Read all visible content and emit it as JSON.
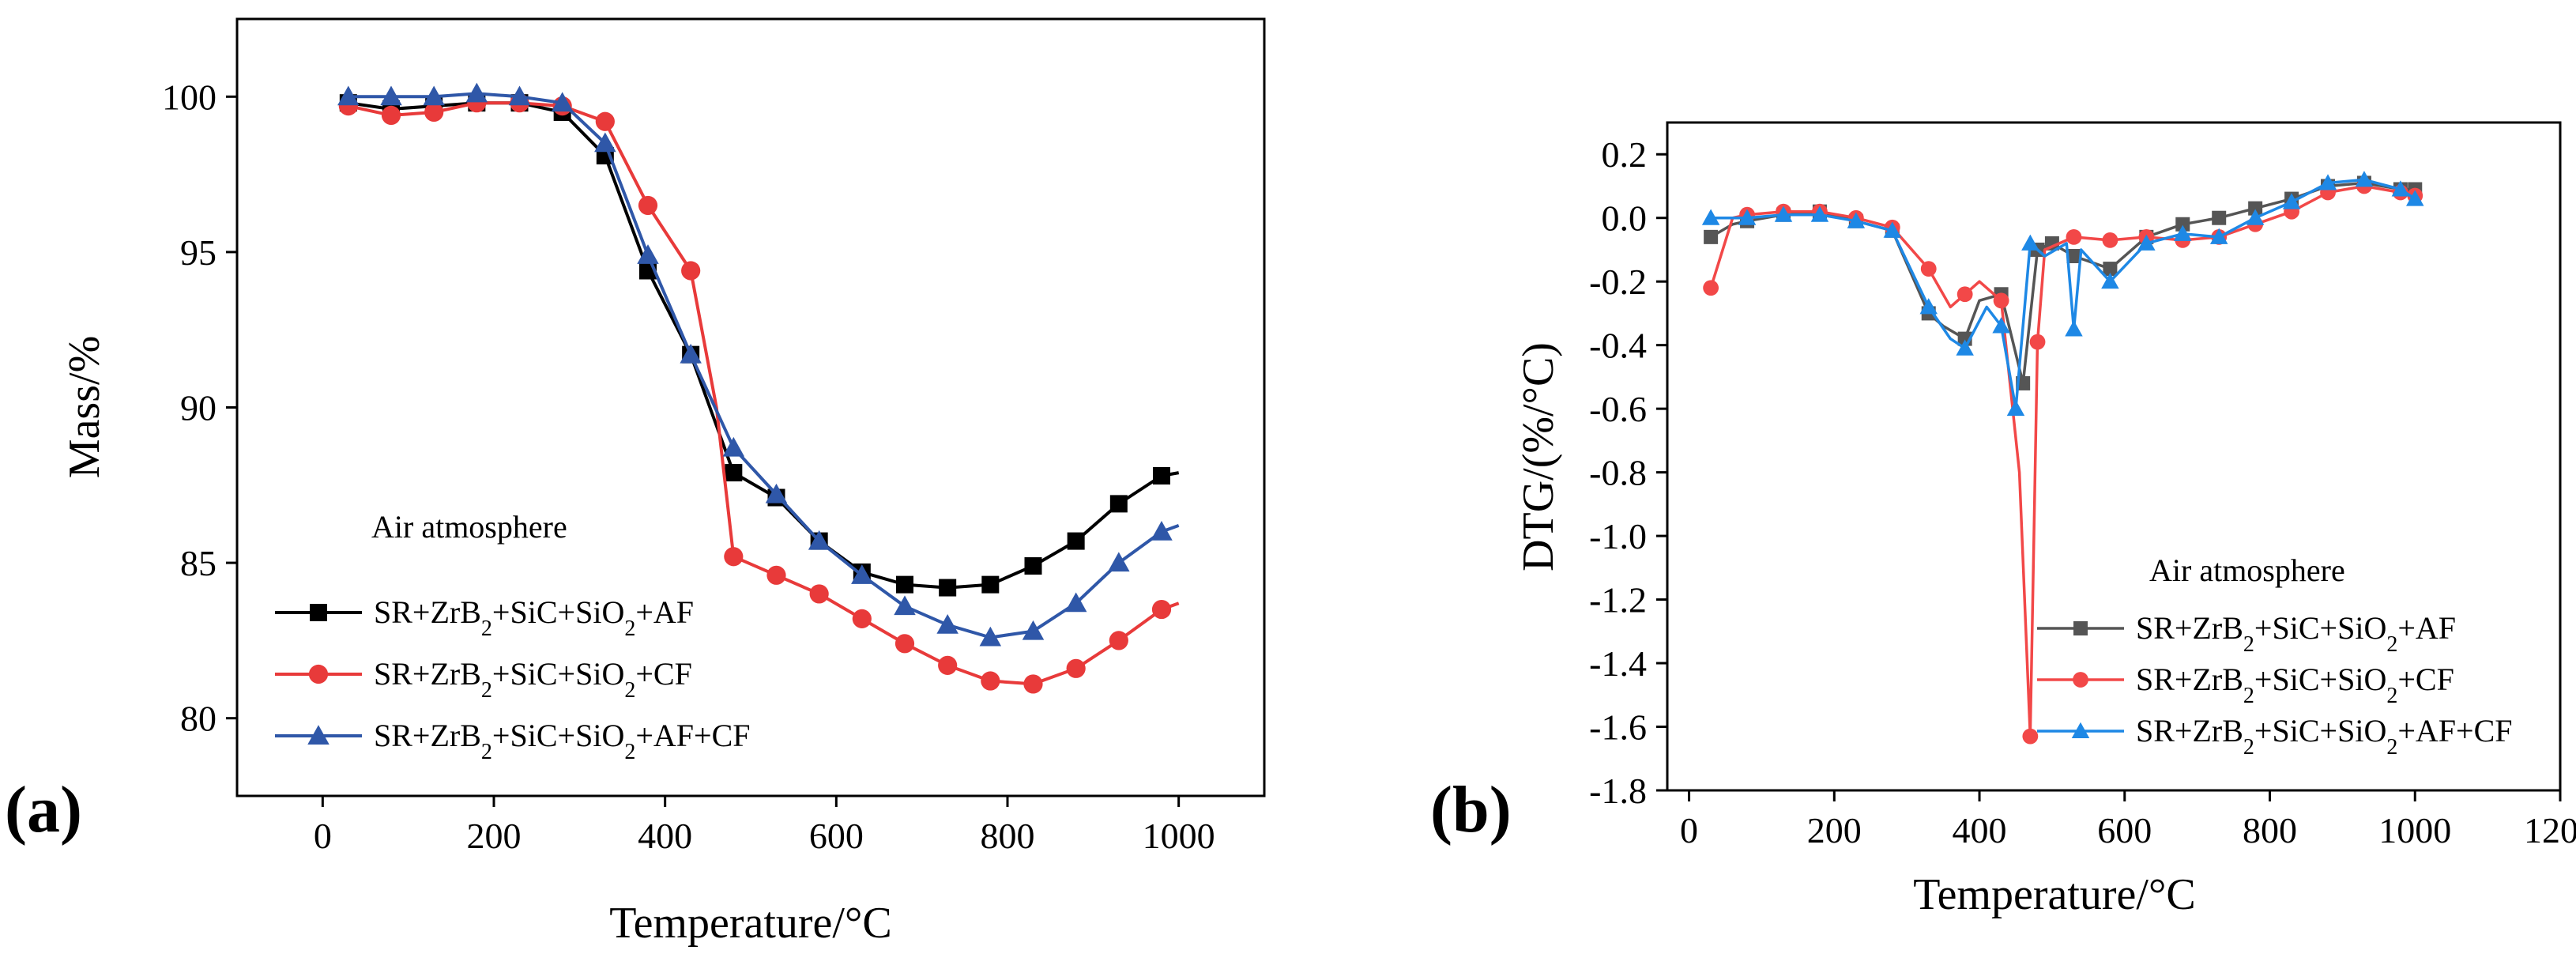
{
  "chart_data": [
    {
      "type": "line",
      "panel_label": "(a)",
      "xlabel": "Temperature/°C",
      "ylabel": "Mass/%",
      "xlim": [
        -100,
        1100
      ],
      "ylim": [
        77.5,
        102.5
      ],
      "xticks": [
        0,
        200,
        400,
        600,
        800,
        1000
      ],
      "yticks": [
        80,
        85,
        90,
        95,
        100
      ],
      "annotation": "Air atmosphere",
      "legend_position": "lower-left",
      "series": [
        {
          "name": "SR+ZrB2+SiC+SiO2+AF",
          "color": "#000000",
          "marker": "square",
          "x": [
            30,
            80,
            130,
            180,
            230,
            280,
            330,
            380,
            430,
            480,
            530,
            580,
            630,
            680,
            730,
            780,
            830,
            880,
            930,
            980,
            1000
          ],
          "y": [
            99.8,
            99.6,
            99.7,
            99.8,
            99.8,
            99.5,
            98.1,
            94.4,
            91.7,
            87.9,
            87.1,
            85.7,
            84.7,
            84.3,
            84.2,
            84.3,
            84.9,
            85.7,
            86.9,
            87.8,
            87.9
          ]
        },
        {
          "name": "SR+ZrB2+SiC+SiO2+CF",
          "color": "#e83a3a",
          "marker": "circle",
          "x": [
            30,
            80,
            130,
            180,
            230,
            280,
            330,
            380,
            430,
            460,
            480,
            530,
            580,
            630,
            680,
            730,
            780,
            830,
            880,
            930,
            980,
            1000
          ],
          "y": [
            99.7,
            99.4,
            99.5,
            99.8,
            99.8,
            99.7,
            99.2,
            96.5,
            94.4,
            90.0,
            85.2,
            84.6,
            84.0,
            83.2,
            82.4,
            81.7,
            81.2,
            81.1,
            81.6,
            82.5,
            83.5,
            83.7
          ]
        },
        {
          "name": "SR+ZrB2+SiC+SiO2+AF+CF",
          "color": "#2f57a8",
          "marker": "triangle",
          "x": [
            30,
            80,
            130,
            180,
            230,
            280,
            330,
            380,
            430,
            480,
            530,
            580,
            630,
            680,
            730,
            780,
            830,
            880,
            930,
            980,
            1000
          ],
          "y": [
            100.0,
            100.0,
            100.0,
            100.1,
            100.0,
            99.8,
            98.5,
            94.9,
            91.7,
            88.7,
            87.2,
            85.7,
            84.6,
            83.6,
            83.0,
            82.6,
            82.8,
            83.7,
            85.0,
            86.0,
            86.2
          ]
        }
      ]
    },
    {
      "type": "line",
      "panel_label": "(b)",
      "xlabel": "Temperature/°C",
      "ylabel": "DTG/(%/°C)",
      "xlim": [
        -30,
        1200
      ],
      "ylim": [
        -1.8,
        0.3
      ],
      "xticks": [
        0,
        200,
        400,
        600,
        800,
        1000,
        1200
      ],
      "yticks": [
        0.2,
        0.0,
        -0.2,
        -0.4,
        -0.6,
        -0.8,
        -1.0,
        -1.2,
        -1.4,
        -1.6,
        -1.8
      ],
      "annotation": "Air atmosphere",
      "legend_position": "lower-right",
      "series": [
        {
          "name": "SR+ZrB2+SiC+SiO2+AF",
          "color": "#555555",
          "marker": "square",
          "x": [
            30,
            60,
            80,
            130,
            180,
            230,
            280,
            330,
            350,
            380,
            400,
            430,
            460,
            480,
            500,
            530,
            580,
            630,
            680,
            730,
            780,
            830,
            880,
            930,
            980,
            1000
          ],
          "y": [
            -0.06,
            -0.02,
            -0.01,
            0.01,
            0.02,
            -0.01,
            -0.04,
            -0.3,
            -0.34,
            -0.38,
            -0.26,
            -0.24,
            -0.52,
            -0.1,
            -0.08,
            -0.12,
            -0.16,
            -0.06,
            -0.02,
            0.0,
            0.03,
            0.06,
            0.1,
            0.11,
            0.09,
            0.09
          ]
        },
        {
          "name": "SR+ZrB2+SiC+SiO2+CF",
          "color": "#f24848",
          "marker": "circle",
          "x": [
            30,
            60,
            80,
            130,
            180,
            230,
            280,
            330,
            360,
            380,
            400,
            430,
            455,
            470,
            480,
            490,
            530,
            580,
            630,
            680,
            730,
            780,
            830,
            880,
            930,
            980,
            1000
          ],
          "y": [
            -0.22,
            0.0,
            0.01,
            0.02,
            0.02,
            0.0,
            -0.03,
            -0.16,
            -0.28,
            -0.24,
            -0.2,
            -0.26,
            -0.8,
            -1.63,
            -0.39,
            -0.1,
            -0.06,
            -0.07,
            -0.06,
            -0.07,
            -0.06,
            -0.02,
            0.02,
            0.08,
            0.1,
            0.08,
            0.07
          ]
        },
        {
          "name": "SR+ZrB2+SiC+SiO2+AF+CF",
          "color": "#1e88e5",
          "marker": "triangle",
          "x": [
            30,
            80,
            130,
            180,
            230,
            280,
            330,
            360,
            380,
            410,
            430,
            450,
            470,
            490,
            520,
            530,
            540,
            580,
            630,
            680,
            730,
            780,
            830,
            880,
            930,
            980,
            1000
          ],
          "y": [
            0.0,
            0.0,
            0.01,
            0.01,
            -0.01,
            -0.04,
            -0.28,
            -0.38,
            -0.41,
            -0.28,
            -0.34,
            -0.6,
            -0.08,
            -0.12,
            -0.08,
            -0.35,
            -0.1,
            -0.2,
            -0.08,
            -0.05,
            -0.06,
            0.0,
            0.05,
            0.11,
            0.12,
            0.09,
            0.06
          ]
        }
      ]
    }
  ]
}
